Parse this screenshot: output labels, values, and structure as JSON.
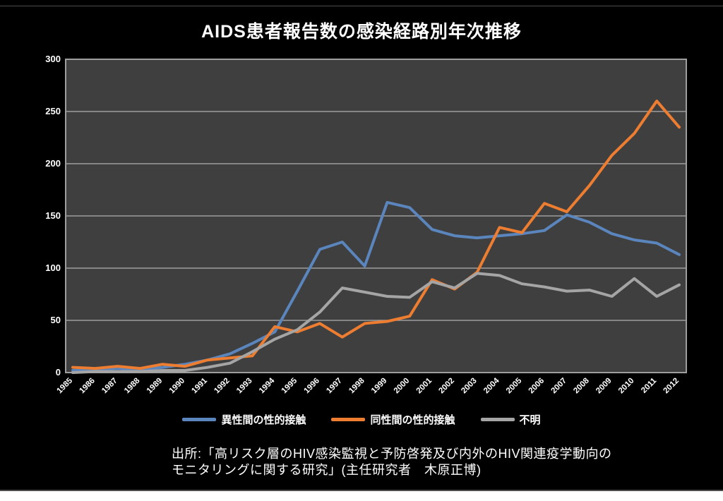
{
  "page": {
    "background": "#000000",
    "bottom_strip_color": "#ffffff"
  },
  "chart": {
    "title": "AIDS患者報告数の感染経路別年次推移"
  },
  "source": {
    "line1": "出所:「高リスク層のHIV感染監視と予防啓発及び内外のHIV関連疫学動向の",
    "line2": "モニタリングに関する研究」(主任研究者　木原正博)"
  },
  "chart_data": {
    "type": "line",
    "title": "AIDS患者報告数の感染経路別年次推移",
    "categories": [
      "1985",
      "1986",
      "1987",
      "1988",
      "1989",
      "1990",
      "1991",
      "1992",
      "1993",
      "1994",
      "1995",
      "1996",
      "1997",
      "1998",
      "1999",
      "2000",
      "2001",
      "2002",
      "2003",
      "2004",
      "2005",
      "2006",
      "2007",
      "2008",
      "2009",
      "2010",
      "2011",
      "2012"
    ],
    "series": [
      {
        "name": "異性間の性的接触",
        "color": "#5b85bd",
        "values": [
          2,
          3,
          4,
          3,
          5,
          8,
          12,
          18,
          28,
          39,
          78,
          118,
          125,
          102,
          163,
          158,
          137,
          131,
          129,
          131,
          133,
          136,
          151,
          144,
          133,
          127,
          124,
          113
        ]
      },
      {
        "name": "同性間の性的接触",
        "color": "#ed7d31",
        "values": [
          5,
          4,
          6,
          4,
          8,
          6,
          12,
          14,
          16,
          44,
          39,
          47,
          34,
          47,
          49,
          54,
          89,
          80,
          96,
          139,
          134,
          162,
          154,
          179,
          208,
          229,
          260,
          235
        ]
      },
      {
        "name": "不明",
        "color": "#a5a5a5",
        "values": [
          0,
          1,
          1,
          1,
          2,
          2,
          5,
          9,
          20,
          32,
          41,
          58,
          81,
          77,
          73,
          72,
          87,
          81,
          95,
          93,
          85,
          82,
          78,
          79,
          73,
          90,
          73,
          84
        ]
      }
    ],
    "ylim": [
      0,
      300
    ],
    "ytick_step": 50,
    "grid": true,
    "legend_position": "bottom",
    "plot_bg": "#3f3f3f",
    "grid_color": "#9e9e9e",
    "text_color": "#ffffff"
  }
}
